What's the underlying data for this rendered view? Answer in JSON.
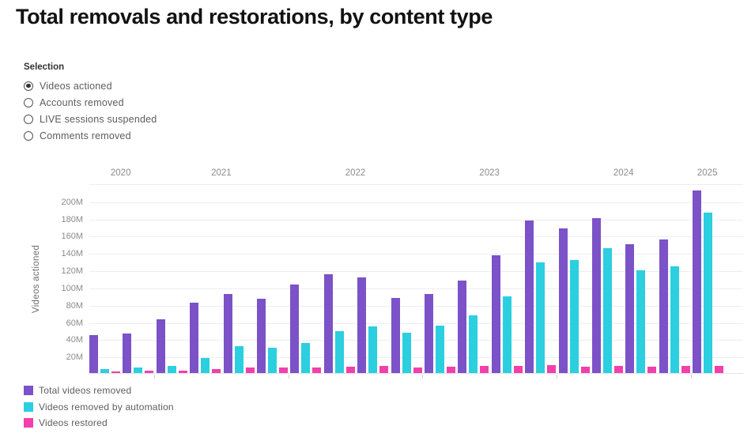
{
  "page": {
    "title": "Total removals and restorations, by content type"
  },
  "selection": {
    "label": "Selection",
    "options": [
      {
        "label": "Videos actioned",
        "selected": true
      },
      {
        "label": "Accounts removed",
        "selected": false
      },
      {
        "label": "LIVE sessions suspended",
        "selected": false
      },
      {
        "label": "Comments removed",
        "selected": false
      }
    ]
  },
  "chart_data": {
    "type": "bar",
    "title": "Total removals and restorations, by content type",
    "ylabel": "Videos actioned",
    "unit": "millions",
    "ylim": [
      0,
      220
    ],
    "ytick_step": 20,
    "ytick_suffix": "M",
    "grid": true,
    "legend_position": "bottom-left",
    "year_labels": [
      "2020",
      "2021",
      "2022",
      "2023",
      "2024",
      "2025"
    ],
    "categories": [
      "2020 Q3",
      "2020 Q4",
      "2021 Q1",
      "2021 Q2",
      "2021 Q3",
      "2021 Q4",
      "2022 Q1",
      "2022 Q2",
      "2022 Q3",
      "2022 Q4",
      "2023 Q1",
      "2023 Q2",
      "2023 Q3",
      "2023 Q4",
      "2024 Q1",
      "2024 Q2",
      "2024 Q3",
      "2024 Q4",
      "2025 Q1"
    ],
    "series": [
      {
        "name": "Total videos removed",
        "color": "#7b52c8",
        "values": [
          44,
          46,
          62.5,
          81.5,
          92,
          86.5,
          103,
          114.5,
          111,
          87,
          91.5,
          107,
          137,
          176.5,
          168,
          179.5,
          149,
          154.5,
          212
        ]
      },
      {
        "name": "Videos removed by automation",
        "color": "#2bcfe0",
        "values": [
          4.5,
          6,
          8,
          17.5,
          31.5,
          29.5,
          35,
          48.5,
          54,
          47,
          55,
          67,
          88.5,
          128.5,
          131,
          145,
          119.5,
          124,
          186
        ]
      },
      {
        "name": "Videos restored",
        "color": "#f23fab",
        "values": [
          1.5,
          2.5,
          3,
          5,
          6,
          6,
          6.5,
          7,
          8,
          6,
          7,
          8,
          8.5,
          9,
          7,
          8,
          7.5,
          8.5,
          8
        ]
      }
    ]
  }
}
